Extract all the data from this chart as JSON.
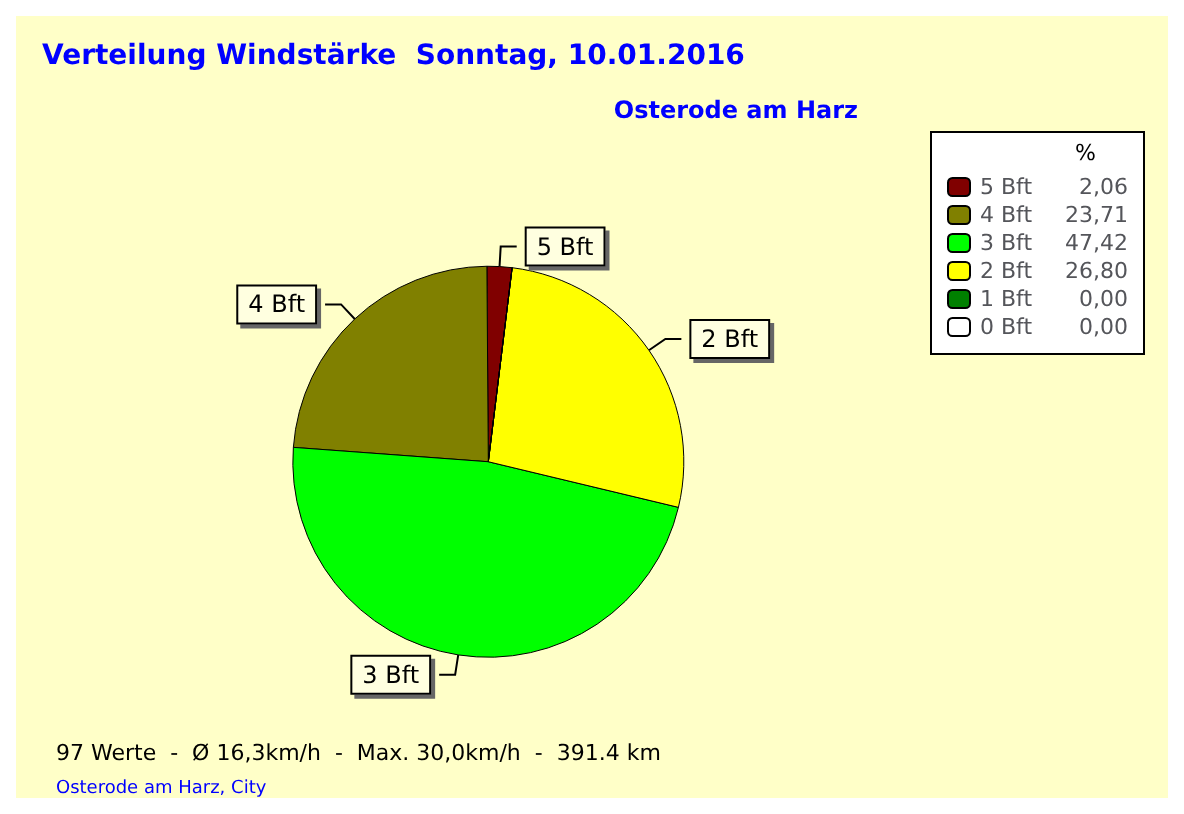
{
  "chart_data": {
    "type": "pie",
    "title": "Verteilung Windstärke  Sonntag, 10.01.2016",
    "subtitle": "Osterode am Harz",
    "categories": [
      "5 Bft",
      "4 Bft",
      "3 Bft",
      "2 Bft",
      "1 Bft",
      "0 Bft"
    ],
    "values": [
      2.06,
      23.71,
      47.42,
      26.8,
      0,
      0
    ],
    "value_labels": [
      "2,06",
      "23,71",
      "47,42",
      "26,80",
      "0,00",
      "0,00"
    ],
    "colors": [
      "#800000",
      "#808000",
      "#00ff00",
      "#ffff00",
      "#008000",
      "#ffffff"
    ],
    "legend": "top right",
    "legend_title": "%",
    "annotations": [
      "97 Werte  -  Ø 16,3km/h  -  Max. 30,0km/h  -  391.4 km",
      "Osterode am Harz, City"
    ]
  }
}
